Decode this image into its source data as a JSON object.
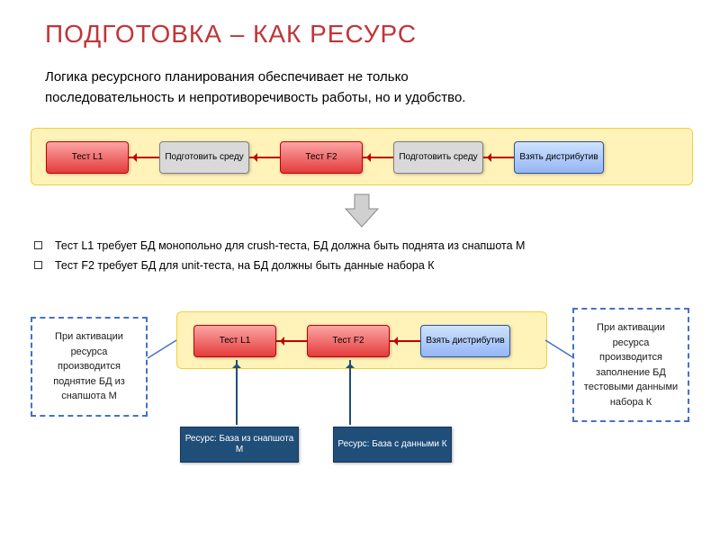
{
  "colors": {
    "title": "#c23438",
    "accent_red": "#c00000",
    "yellow_fill": "#fff3b9",
    "yellow_border": "#f2ce3a",
    "red_fill_top": "#fca5a5",
    "red_fill_bot": "#e43b3b",
    "red_border": "#c00000",
    "grey_fill": "#d9d9d9",
    "grey_border": "#7f7f7f",
    "blue_fill_top": "#cfe2ff",
    "blue_fill_bot": "#94b6f5",
    "blue_border": "#2f5597",
    "navy_fill": "#1f4e79",
    "navy_border": "#16365c",
    "big_arrow_fill": "#d0d0d0",
    "big_arrow_border": "#8a8a8a",
    "dashed_border": "#4472c4",
    "v_arrow": "#1f4e79"
  },
  "title": "ПОДГОТОВКА – КАК РЕСУРС",
  "subtitle_l1": "Логика ресурсного планирования обеспечивает не только",
  "subtitle_l2": "последовательность и непротиворечивость работы, но и удобство.",
  "top_flow": {
    "n1": "Тест L1",
    "n2": "Подготовить среду",
    "n3": "Тест F2",
    "n4": "Подготовить среду",
    "n5": "Взять дистрибутив"
  },
  "bullets": {
    "b1": "Тест L1 требует БД монопольно для crush-теста, БД должна быть поднята из снапшота М",
    "b2": "Тест F2 требует БД для unit-теста, на БД должны быть данные набора К"
  },
  "note_left": "При активации ресурса производится поднятие БД из снапшота М",
  "note_right": "При активации ресурса производится заполнение БД тестовыми данными набора К",
  "bottom_flow": {
    "n1": "Тест L1",
    "n2": "Тест F2",
    "n3": "Взять дистрибутив"
  },
  "resources": {
    "r1": "Ресурс: База из снапшота М",
    "r2": "Ресурс: База с данными К"
  }
}
